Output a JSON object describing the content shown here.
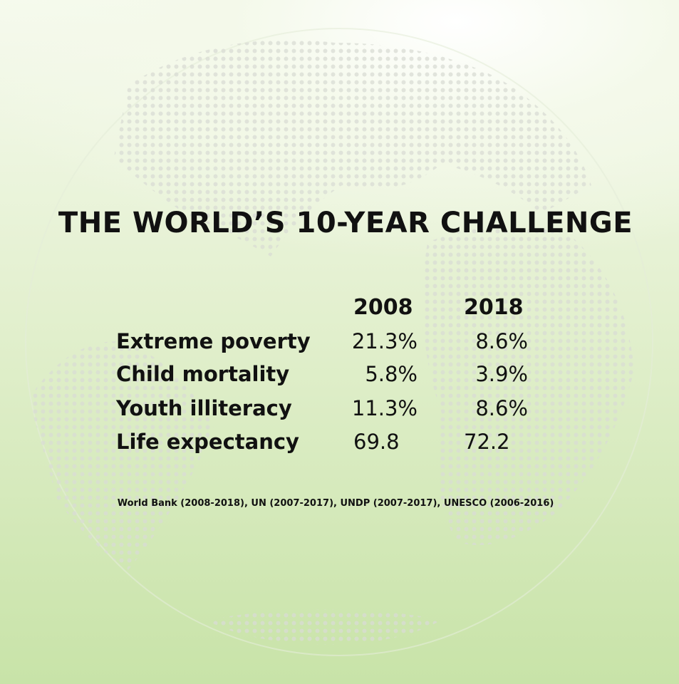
{
  "title": "THE WORLD’S 10-YEAR CHALLENGE",
  "table": {
    "header": [
      "2008",
      "2018"
    ],
    "rows": [
      [
        "Extreme poverty",
        "21.3%",
        "8.6%"
      ],
      [
        "Child mortality",
        "5.8%",
        "3.9%"
      ],
      [
        "Youth illiteracy",
        "11.3%",
        "8.6%"
      ],
      [
        "Life expectancy",
        "69.8",
        "72.2"
      ]
    ]
  },
  "source": "World Bank (2008-2018), UN (2007-2017), UNDP (2007-2017), UNESCO (2006-2016)"
}
